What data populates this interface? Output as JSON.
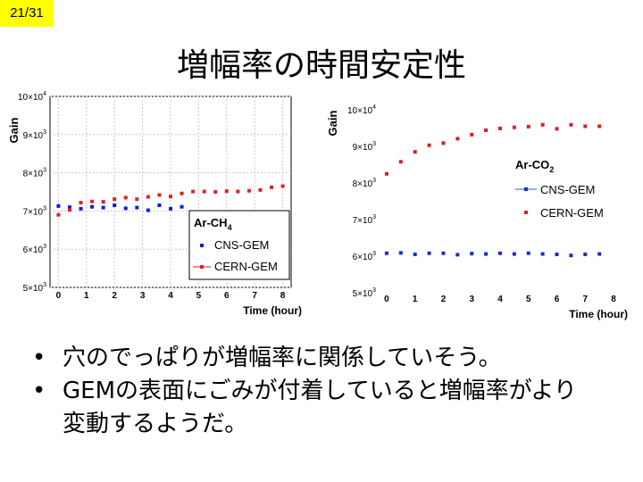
{
  "slide": {
    "page_number": "21/31",
    "title": "増幅率の時間安定性",
    "bullets": [
      "穴のでっぱりが増幅率に関係していそう。",
      "GEMの表面にごみが付着していると増幅率がより変動するようだ。"
    ],
    "bullet_symbol": "•"
  },
  "chart_data": [
    {
      "type": "scatter",
      "ylabel": "Gain",
      "xlabel": "Time (hour)",
      "xlim": [
        -0.3,
        8.3
      ],
      "ylim": [
        5000,
        10000
      ],
      "x_ticks": [
        "0",
        "1",
        "2",
        "3",
        "4",
        "5",
        "6",
        "7",
        "8"
      ],
      "y_ticks": [
        {
          "value": 5000,
          "m": "5",
          "e": "3"
        },
        {
          "value": 6000,
          "m": "6",
          "e": "3"
        },
        {
          "value": 7000,
          "m": "7",
          "e": "3"
        },
        {
          "value": 8000,
          "m": "8",
          "e": "3"
        },
        {
          "value": 9000,
          "m": "9",
          "e": "3"
        },
        {
          "value": 10000,
          "m": "10",
          "e": "4"
        }
      ],
      "legend_title": {
        "base": "Ar-CH",
        "sub": "4"
      },
      "grid": true,
      "series": [
        {
          "name": "CNS-GEM",
          "color": "#0a1fd6",
          "x": [
            0,
            0.4,
            0.8,
            1.2,
            1.6,
            2.0,
            2.4,
            2.8,
            3.2,
            3.6,
            4.0,
            4.4
          ],
          "y": [
            7130,
            7100,
            7060,
            7110,
            7090,
            7150,
            7070,
            7090,
            7020,
            7150,
            7060,
            7110
          ]
        },
        {
          "name": "CERN-GEM",
          "color": "#e0202a",
          "x": [
            0,
            0.4,
            0.8,
            1.2,
            1.6,
            2.0,
            2.4,
            2.8,
            3.2,
            3.6,
            4.0,
            4.4,
            4.8,
            5.2,
            5.6,
            6.0,
            6.4,
            6.8,
            7.2,
            7.6,
            8.0
          ],
          "y": [
            6900,
            7030,
            7220,
            7250,
            7240,
            7310,
            7350,
            7310,
            7370,
            7420,
            7380,
            7460,
            7510,
            7510,
            7500,
            7520,
            7510,
            7530,
            7550,
            7620,
            7650
          ]
        }
      ]
    },
    {
      "type": "scatter",
      "ylabel": "Gain",
      "xlabel": "Time (hour)",
      "xlim": [
        -0.25,
        8.25
      ],
      "ylim": [
        5000,
        10000
      ],
      "x_ticks": [
        "0",
        "1",
        "2",
        "3",
        "4",
        "5",
        "6",
        "7",
        "8"
      ],
      "y_ticks": [
        {
          "value": 5000,
          "m": "5",
          "e": "3"
        },
        {
          "value": 6000,
          "m": "6",
          "e": "3"
        },
        {
          "value": 7000,
          "m": "7",
          "e": "3"
        },
        {
          "value": 8000,
          "m": "8",
          "e": "3"
        },
        {
          "value": 9000,
          "m": "9",
          "e": "3"
        },
        {
          "value": 10000,
          "m": "10",
          "e": "4"
        }
      ],
      "legend_title": {
        "base": "Ar-CO",
        "sub": "2"
      },
      "grid": false,
      "series": [
        {
          "name": "CNS-GEM",
          "color": "#1a2bc8",
          "x": [
            0,
            0.5,
            1.0,
            1.5,
            2.0,
            2.5,
            3.0,
            3.5,
            4.0,
            4.5,
            5.0,
            5.5,
            6.0,
            6.5,
            7.0,
            7.5
          ],
          "y": [
            6080,
            6090,
            6050,
            6080,
            6080,
            6040,
            6070,
            6060,
            6080,
            6060,
            6080,
            6060,
            6050,
            6020,
            6050,
            6060
          ]
        },
        {
          "name": "CERN-GEM",
          "color": "#d81f26",
          "x": [
            0,
            0.5,
            1.0,
            1.5,
            2.0,
            2.5,
            3.0,
            3.5,
            4.0,
            4.5,
            5.0,
            5.5,
            6.0,
            6.5,
            7.0,
            7.5
          ],
          "y": [
            8250,
            8580,
            8850,
            9030,
            9090,
            9210,
            9320,
            9440,
            9490,
            9520,
            9540,
            9590,
            9480,
            9590,
            9550,
            9550
          ]
        }
      ]
    }
  ]
}
